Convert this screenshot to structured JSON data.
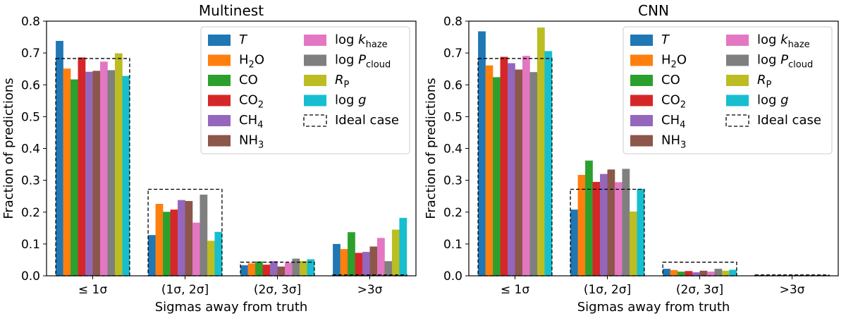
{
  "series_order": [
    "T",
    "H2O",
    "CO",
    "CO2",
    "CH4",
    "NH3",
    "log_khaze",
    "log_Pcloud",
    "RP",
    "log_g"
  ],
  "legend": {
    "entries": [
      {
        "key": "T",
        "main": "T",
        "sub": "",
        "italic": true,
        "prefix": "",
        "color": "#1f77b4"
      },
      {
        "key": "H2O",
        "main": "H",
        "sub": "2",
        "tail": "O",
        "italic": false,
        "prefix": "",
        "color": "#ff7f0e"
      },
      {
        "key": "CO",
        "main": "CO",
        "sub": "",
        "italic": false,
        "prefix": "",
        "color": "#2ca02c"
      },
      {
        "key": "CO2",
        "main": "CO",
        "sub": "2",
        "italic": false,
        "prefix": "",
        "color": "#d62728"
      },
      {
        "key": "CH4",
        "main": "CH",
        "sub": "4",
        "italic": false,
        "prefix": "",
        "color": "#9467bd"
      },
      {
        "key": "NH3",
        "main": "NH",
        "sub": "3",
        "italic": false,
        "prefix": "",
        "color": "#8c564b"
      },
      {
        "key": "log_khaze",
        "main": "k",
        "sub": "haze",
        "italic": true,
        "prefix": "log ",
        "color": "#e377c2"
      },
      {
        "key": "log_Pcloud",
        "main": "P",
        "sub": "cloud",
        "italic": true,
        "prefix": "log ",
        "color": "#7f7f7f"
      },
      {
        "key": "RP",
        "main": "R",
        "sub": "P",
        "italic": true,
        "prefix": "",
        "color": "#bcbd22"
      },
      {
        "key": "log_g",
        "main": "g",
        "sub": "",
        "italic": true,
        "prefix": "log ",
        "color": "#17becf"
      },
      {
        "key": "ideal",
        "main": "Ideal case",
        "sub": "",
        "italic": false,
        "prefix": "",
        "color": "none"
      }
    ]
  },
  "chart_data": [
    {
      "type": "bar",
      "title": "Multinest",
      "xlabel": "Sigmas away from truth",
      "ylabel": "Fraction of predictions",
      "ylim": [
        0,
        0.8
      ],
      "yticks": [
        "0.0",
        "0.1",
        "0.2",
        "0.3",
        "0.4",
        "0.5",
        "0.6",
        "0.7",
        "0.8"
      ],
      "categories": [
        "≤ 1σ",
        "(1σ, 2σ]",
        "(2σ, 3σ]",
        ">3σ"
      ],
      "legend_placement": "top-right",
      "ideal_case": [
        0.6827,
        0.2718,
        0.0428,
        0.0027
      ],
      "series": [
        {
          "name": "T",
          "values": [
            0.738,
            0.128,
            0.033,
            0.1
          ]
        },
        {
          "name": "H2O",
          "values": [
            0.651,
            0.226,
            0.039,
            0.084
          ]
        },
        {
          "name": "CO",
          "values": [
            0.617,
            0.201,
            0.045,
            0.137
          ]
        },
        {
          "name": "CO2",
          "values": [
            0.686,
            0.208,
            0.035,
            0.072
          ]
        },
        {
          "name": "CH4",
          "values": [
            0.641,
            0.238,
            0.046,
            0.075
          ]
        },
        {
          "name": "NH3",
          "values": [
            0.644,
            0.235,
            0.029,
            0.092
          ]
        },
        {
          "name": "log k_haze",
          "values": [
            0.673,
            0.167,
            0.041,
            0.119
          ]
        },
        {
          "name": "log P_cloud",
          "values": [
            0.646,
            0.255,
            0.054,
            0.046
          ]
        },
        {
          "name": "R_P",
          "values": [
            0.699,
            0.11,
            0.046,
            0.145
          ]
        },
        {
          "name": "log g",
          "values": [
            0.628,
            0.138,
            0.052,
            0.182
          ]
        }
      ]
    },
    {
      "type": "bar",
      "title": "CNN",
      "xlabel": "Sigmas away from truth",
      "ylabel": "Fraction of predictions",
      "ylim": [
        0,
        0.8
      ],
      "yticks": [
        "0.0",
        "0.1",
        "0.2",
        "0.3",
        "0.4",
        "0.5",
        "0.6",
        "0.7",
        "0.8"
      ],
      "categories": [
        "≤ 1σ",
        "(1σ, 2σ]",
        "(2σ, 3σ]",
        ">3σ"
      ],
      "legend_placement": "top-right",
      "ideal_case": [
        0.6827,
        0.2718,
        0.0428,
        0.0027
      ],
      "series": [
        {
          "name": "T",
          "values": [
            0.768,
            0.208,
            0.022,
            0.002
          ]
        },
        {
          "name": "H2O",
          "values": [
            0.661,
            0.317,
            0.018,
            0.002
          ]
        },
        {
          "name": "CO",
          "values": [
            0.624,
            0.362,
            0.013,
            0.001
          ]
        },
        {
          "name": "CO2",
          "values": [
            0.688,
            0.295,
            0.015,
            0.002
          ]
        },
        {
          "name": "CH4",
          "values": [
            0.668,
            0.32,
            0.011,
            0.001
          ]
        },
        {
          "name": "NH3",
          "values": [
            0.648,
            0.334,
            0.016,
            0.002
          ]
        },
        {
          "name": "log k_haze",
          "values": [
            0.691,
            0.294,
            0.013,
            0.002
          ]
        },
        {
          "name": "log P_cloud",
          "values": [
            0.64,
            0.336,
            0.022,
            0.002
          ]
        },
        {
          "name": "R_P",
          "values": [
            0.78,
            0.202,
            0.016,
            0.002
          ]
        },
        {
          "name": "log g",
          "values": [
            0.706,
            0.273,
            0.019,
            0.002
          ]
        }
      ]
    }
  ]
}
